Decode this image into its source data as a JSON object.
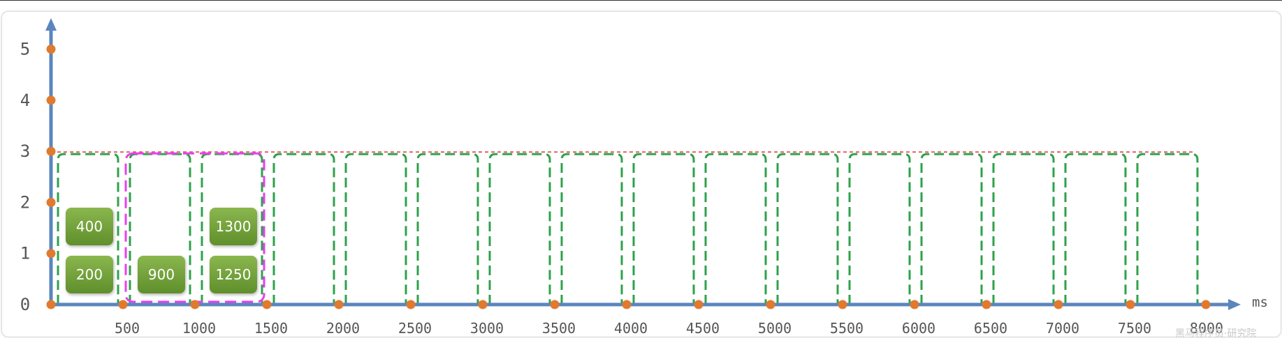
{
  "diagram": {
    "x_unit": "ms",
    "x_ticks": [
      "500",
      "1000",
      "1500",
      "2000",
      "2500",
      "3000",
      "3500",
      "4000",
      "4500",
      "5000",
      "5500",
      "6000",
      "6500",
      "7000",
      "7500",
      "8000"
    ],
    "y_ticks": [
      "0",
      "1",
      "2",
      "3",
      "4",
      "5"
    ],
    "limit_line_value": 3,
    "window_count": 16,
    "highlight_window": {
      "from": 500,
      "to": 1500
    },
    "requests": [
      {
        "label": "400",
        "window": 0,
        "slot": 1
      },
      {
        "label": "200",
        "window": 0,
        "slot": 0
      },
      {
        "label": "900",
        "window": 1,
        "slot": 0
      },
      {
        "label": "1300",
        "window": 2,
        "slot": 1
      },
      {
        "label": "1250",
        "window": 2,
        "slot": 0
      }
    ],
    "colors": {
      "axis": "#5b86bd",
      "dot": "#e07a2e",
      "window": "#2ea24a",
      "highlight": "#e83ff0",
      "limit": "#e06666",
      "request_top": "#8ab64e",
      "request_bottom": "#5f8f2b"
    },
    "watermark": "黑马程序员·研究院"
  }
}
